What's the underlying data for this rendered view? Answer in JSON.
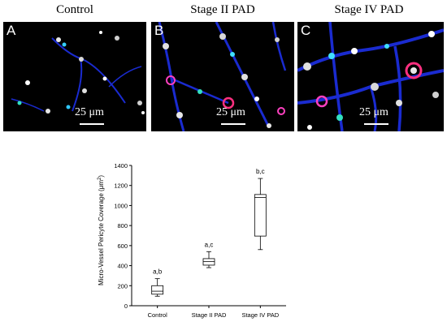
{
  "panels": [
    {
      "title": "Control",
      "letter": "A",
      "scale": "25 μm"
    },
    {
      "title": "Stage II PAD",
      "letter": "B",
      "scale": "25 μm"
    },
    {
      "title": "Stage IV PAD",
      "letter": "C",
      "scale": "25 μm"
    }
  ],
  "chart_data": {
    "type": "box",
    "ylabel": "Micro-Vessel Pericyte Coverage (μm²)",
    "ylabel_main": "Micro-Vessel Pericyte Coverage (μm",
    "ylabel_sup": "2",
    "ylabel_end": ")",
    "ylim": [
      0,
      1400
    ],
    "yticks": [
      0,
      200,
      400,
      600,
      800,
      1000,
      1200,
      1400
    ],
    "categories": [
      "Control",
      "Stage II PAD",
      "Stage IV PAD"
    ],
    "boxes": [
      {
        "min": 95,
        "q1": 115,
        "median": 145,
        "q3": 200,
        "max": 270,
        "annotation": "a,b"
      },
      {
        "min": 380,
        "q1": 405,
        "median": 440,
        "q3": 470,
        "max": 540,
        "annotation": "a,c"
      },
      {
        "min": 560,
        "q1": 695,
        "median": 1080,
        "q3": 1110,
        "max": 1270,
        "annotation": "b,c"
      }
    ],
    "grid": false
  }
}
